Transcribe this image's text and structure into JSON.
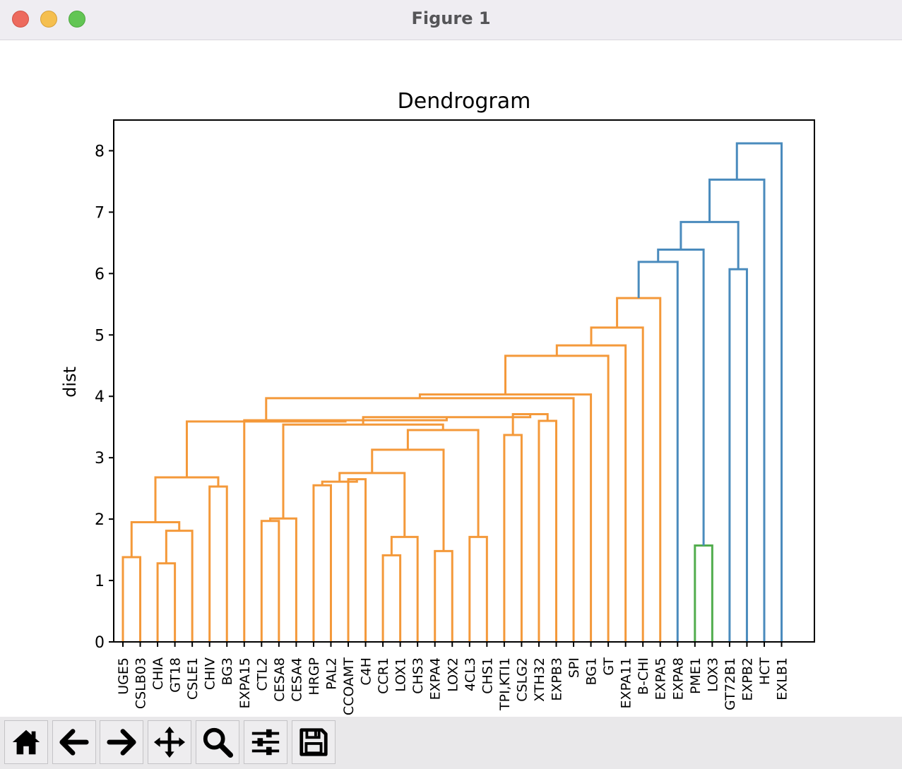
{
  "window": {
    "title": "Figure 1"
  },
  "toolbar": {
    "buttons": [
      {
        "name": "home-button",
        "icon": "home-icon"
      },
      {
        "name": "back-button",
        "icon": "arrow-left-icon"
      },
      {
        "name": "forward-button",
        "icon": "arrow-right-icon"
      },
      {
        "name": "pan-button",
        "icon": "move-icon"
      },
      {
        "name": "zoom-button",
        "icon": "magnifier-icon"
      },
      {
        "name": "configure-subplots-button",
        "icon": "sliders-icon"
      },
      {
        "name": "save-button",
        "icon": "floppy-disk-icon"
      }
    ]
  },
  "colors": {
    "orange": "#f4993a",
    "blue": "#4a8bbd",
    "green": "#52ad4e"
  },
  "chart_data": {
    "type": "dendrogram",
    "title": "Dendrogram",
    "xlabel": "",
    "ylabel": "dist",
    "ylim": [
      0,
      8.5
    ],
    "yticks": [
      0,
      1,
      2,
      3,
      4,
      5,
      6,
      7,
      8
    ],
    "leaves": [
      "UGE5",
      "CSLB03",
      "CHIA",
      "GT18",
      "CSLE1",
      "CHIV",
      "BG3",
      "EXPA15",
      "CTL2",
      "CESA8",
      "CESA4",
      "HRGP",
      "PAL2",
      "CCOAMT",
      "C4H",
      "CCR1",
      "LOX1",
      "CHS3",
      "EXPA4",
      "LOX2",
      "4CL3",
      "CHS1",
      "TPI,KTI1",
      "CSLG2",
      "XTH32",
      "EXPB3",
      "SPI",
      "BG1",
      "GT",
      "EXPA11",
      "B-CHI",
      "EXPA5",
      "EXPA8",
      "PME1",
      "LOX3",
      "GT72B1",
      "EXPB2",
      "HCT",
      "EXLB1"
    ],
    "links": [
      {
        "a": "UGE5",
        "b": "CSLB03",
        "h": 1.38,
        "color": "orange"
      },
      {
        "a": "CHIA",
        "b": "GT18",
        "h": 1.28,
        "color": "orange"
      },
      {
        "a": 2,
        "b": "CSLE1",
        "h": 1.81,
        "color": "orange"
      },
      {
        "a": 1,
        "b": 3,
        "h": 1.95,
        "color": "orange"
      },
      {
        "a": "CHIV",
        "b": "BG3",
        "h": 2.53,
        "color": "orange"
      },
      {
        "a": 4,
        "b": 5,
        "h": 2.68,
        "color": "orange"
      },
      {
        "a": "CTL2",
        "b": "CESA8",
        "h": 1.97,
        "color": "orange"
      },
      {
        "a": 7,
        "b": "CESA4",
        "h": 2.01,
        "color": "orange"
      },
      {
        "a": "HRGP",
        "b": "PAL2",
        "h": 2.55,
        "color": "orange"
      },
      {
        "a": "CCOAMT",
        "b": "C4H",
        "h": 2.65,
        "color": "orange"
      },
      {
        "a": 9,
        "b": 10,
        "h": 2.61,
        "color": "orange"
      },
      {
        "a": "CCR1",
        "b": "LOX1",
        "h": 1.41,
        "color": "orange"
      },
      {
        "a": 12,
        "b": "CHS3",
        "h": 1.71,
        "color": "orange"
      },
      {
        "a": 11,
        "b": 13,
        "h": 2.75,
        "color": "orange"
      },
      {
        "a": "EXPA4",
        "b": "LOX2",
        "h": 1.48,
        "color": "orange"
      },
      {
        "a": 14,
        "b": 15,
        "h": 3.13,
        "color": "orange"
      },
      {
        "a": "4CL3",
        "b": "CHS1",
        "h": 1.71,
        "color": "orange"
      },
      {
        "a": 16,
        "b": 17,
        "h": 3.45,
        "color": "orange"
      },
      {
        "a": 8,
        "b": 18,
        "h": 3.54,
        "color": "orange"
      },
      {
        "a": "TPI,KTI1",
        "b": "CSLG2",
        "h": 3.37,
        "color": "orange"
      },
      {
        "a": "XTH32",
        "b": "EXPB3",
        "h": 3.6,
        "color": "orange"
      },
      {
        "a": 20,
        "b": 21,
        "h": 3.71,
        "color": "orange"
      },
      {
        "a": 19,
        "b": 22,
        "h": 3.66,
        "color": "orange"
      },
      {
        "a": "EXPA15",
        "b": 23,
        "h": 3.61,
        "color": "orange"
      },
      {
        "a": 6,
        "b": 24,
        "h": 3.59,
        "color": "orange"
      },
      {
        "a": 25,
        "b": "SPI",
        "h": 3.97,
        "color": "orange"
      },
      {
        "a": 26,
        "b": "BG1",
        "h": 4.03,
        "color": "orange"
      },
      {
        "a": 27,
        "b": "GT",
        "h": 4.66,
        "color": "orange"
      },
      {
        "a": 28,
        "b": "EXPA11",
        "h": 4.83,
        "color": "orange"
      },
      {
        "a": 29,
        "b": "B-CHI",
        "h": 5.12,
        "color": "orange"
      },
      {
        "a": 30,
        "b": "EXPA5",
        "h": 5.6,
        "color": "orange"
      },
      {
        "a": 31,
        "b": "EXPA8",
        "h": 6.19,
        "color": "blue"
      },
      {
        "a": "PME1",
        "b": "LOX3",
        "h": 1.57,
        "color": "green"
      },
      {
        "a": 32,
        "b": 33,
        "h": 6.39,
        "color": "blue"
      },
      {
        "a": "GT72B1",
        "b": "EXPB2",
        "h": 6.07,
        "color": "blue"
      },
      {
        "a": 34,
        "b": 35,
        "h": 6.84,
        "color": "blue"
      },
      {
        "a": 36,
        "b": "HCT",
        "h": 7.53,
        "color": "blue"
      },
      {
        "a": 37,
        "b": "EXLB1",
        "h": 8.12,
        "color": "blue"
      }
    ]
  }
}
